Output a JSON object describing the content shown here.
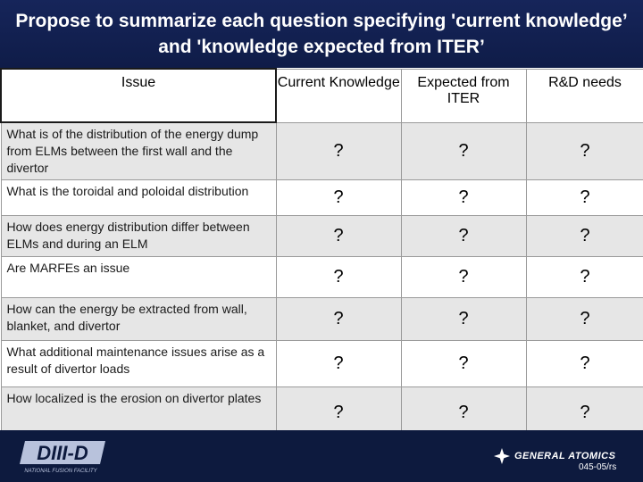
{
  "title": "Propose to summarize each question specifying 'current knowledge’ and 'knowledge expected from ITER’",
  "headers": {
    "issue": "Issue",
    "current": "Current Knowledge",
    "expected": "Expected from ITER",
    "rd": "R&D needs"
  },
  "rows": [
    {
      "issue": "What is of the distribution of the energy dump from ELMs between the first wall and the divertor",
      "current": "?",
      "expected": "?",
      "rd": "?"
    },
    {
      "issue": "What is the toroidal and poloidal distribution",
      "current": "?",
      "expected": "?",
      "rd": "?"
    },
    {
      "issue": "How does energy distribution differ between ELMs and during an ELM",
      "current": "?",
      "expected": "?",
      "rd": "?"
    },
    {
      "issue": "Are MARFEs an issue",
      "current": "?",
      "expected": "?",
      "rd": "?"
    },
    {
      "issue": "How can the energy be extracted from wall, blanket, and divertor",
      "current": "?",
      "expected": "?",
      "rd": "?"
    },
    {
      "issue": "What additional maintenance issues arise as a result of divertor loads",
      "current": "?",
      "expected": "?",
      "rd": "?"
    },
    {
      "issue": "How localized is the erosion on divertor plates",
      "current": "?",
      "expected": "?",
      "rd": "?"
    }
  ],
  "footer": {
    "left_logo": "DIII-D",
    "left_logo_sub": "NATIONAL FUSION FACILITY",
    "right_logo": "GENERAL ATOMICS",
    "code": "045-05/rs"
  },
  "colors": {
    "background": "#0d1a3e",
    "row_alt": "#e6e6e6",
    "title_text": "#ffffff"
  }
}
